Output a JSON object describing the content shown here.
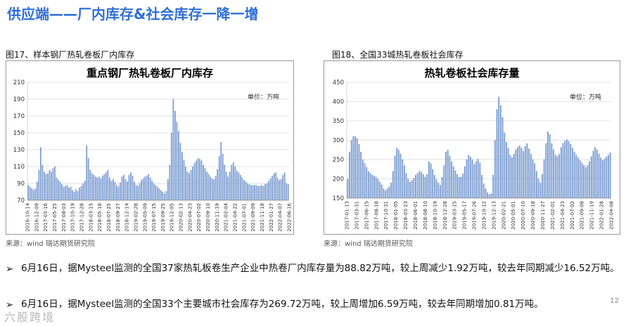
{
  "page": {
    "title": "供应端——厂内库存&社会库存一降一增",
    "page_number": "12",
    "watermark": "六股跨境",
    "accent_color": "#2f6fd6"
  },
  "figures": [
    {
      "caption": "图17、样本钢厂热轧卷板厂内库存",
      "source": "来源：wind   瑞达期货研究院"
    },
    {
      "caption": "图18、全国33城热轧卷板社会库存",
      "source": "来源：wind   瑞达期货研究院"
    }
  ],
  "bullets": [
    "6月16日，据Mysteel监测的全国37家热轧板卷生产企业中热卷厂内库存量为88.82万吨，较上周减少1.92万吨，较去年同期减少16.52万吨。",
    "6月16日，据Mysteel监测的全国33个主要城市社会库存为269.72万吨，较上周增加6.59万吨，较去年同期增加0.81万吨。"
  ],
  "chart_data": [
    {
      "type": "bar",
      "title": "重点钢厂热轧卷板厂内库存",
      "unit": "单位：万吨",
      "bar_color": "#7f9fd3",
      "ylim": [
        70,
        210
      ],
      "yticks": [
        "70",
        "90",
        "110",
        "130",
        "150",
        "170",
        "190",
        "210"
      ],
      "xticks": [
        "2016-10-14",
        "2016-12-09",
        "2017-03-16",
        "2017-05-25",
        "2017-08-03",
        "2017-10-19",
        "2017-12-28",
        "2018-03-15",
        "2018-05-18",
        "2018-07-25",
        "2018-09-27",
        "2018-12-14",
        "2019-02-28",
        "2019-05-09",
        "2019-07-15",
        "2019-09-25",
        "2019-12-05",
        "2020-02-13",
        "2020-04-23",
        "2020-07-02",
        "2020-09-10",
        "2020-11-19",
        "2021-02-04",
        "2021-04-22",
        "2021-07-01",
        "2021-09-09",
        "2021-11-18",
        "2022-01-27",
        "2022-04-07",
        "2022-06-16"
      ],
      "values": [
        88,
        86,
        84,
        82,
        84,
        92,
        106,
        133,
        112,
        104,
        101,
        102,
        106,
        104,
        108,
        110,
        97,
        94,
        92,
        89,
        86,
        87,
        88,
        85,
        86,
        82,
        80,
        83,
        81,
        85,
        87,
        90,
        93,
        135,
        120,
        106,
        102,
        100,
        98,
        97,
        98,
        96,
        99,
        101,
        103,
        106,
        97,
        93,
        95,
        92,
        88,
        86,
        91,
        98,
        100,
        95,
        92,
        100,
        103,
        99,
        92,
        88,
        87,
        90,
        94,
        96,
        98,
        99,
        101,
        97,
        93,
        90,
        88,
        86,
        84,
        82,
        80,
        78,
        81,
        95,
        112,
        150,
        190,
        176,
        163,
        152,
        138,
        127,
        118,
        110,
        104,
        102,
        106,
        110,
        114,
        117,
        120,
        119,
        117,
        112,
        108,
        104,
        101,
        98,
        96,
        95,
        99,
        107,
        122,
        139,
        125,
        112,
        104,
        98,
        104,
        112,
        115,
        110,
        105,
        103,
        100,
        97,
        94,
        92,
        90,
        89,
        88,
        88,
        88,
        88,
        87,
        87,
        88,
        87,
        89,
        90,
        93,
        96,
        99,
        102,
        103,
        97,
        94,
        95,
        100,
        103,
        90,
        89
      ]
    },
    {
      "type": "bar",
      "title": "热轧卷板社会库存量",
      "unit": "单位：万吨",
      "bar_color": "#7f9fd3",
      "ylim": [
        150,
        450
      ],
      "yticks": [
        "150",
        "200",
        "250",
        "300",
        "350",
        "400",
        "450"
      ],
      "xticks": [
        "2017-01-13",
        "2017-03-31",
        "2017-06-15",
        "2017-08-18",
        "2017-10-31",
        "2018-01-05",
        "2018-03-23",
        "2018-06-01",
        "2018-08-10",
        "2018-10-19",
        "2018-12-28",
        "2019-03-15",
        "2019-05-17",
        "2019-07-26",
        "2019-10-12",
        "2019-12-13",
        "2020-02-21",
        "2020-05-01",
        "2020-07-10",
        "2020-09-18",
        "2020-11-27",
        "2021-02-01",
        "2021-04-23",
        "2021-07-02",
        "2021-09-08",
        "2021-11-19",
        "2022-01-28",
        "2022-04-08"
      ],
      "values": [
        200,
        270,
        300,
        310,
        310,
        305,
        290,
        270,
        250,
        240,
        230,
        220,
        215,
        210,
        208,
        205,
        200,
        192,
        185,
        175,
        170,
        175,
        180,
        190,
        220,
        260,
        280,
        275,
        265,
        250,
        235,
        215,
        200,
        192,
        196,
        202,
        210,
        215,
        220,
        218,
        212,
        205,
        212,
        245,
        240,
        225,
        210,
        198,
        190,
        184,
        205,
        235,
        270,
        275,
        260,
        245,
        232,
        222,
        212,
        205,
        205,
        214,
        232,
        250,
        262,
        257,
        250,
        238,
        245,
        252,
        242,
        210,
        188,
        175,
        165,
        160,
        162,
        210,
        300,
        380,
        412,
        390,
        360,
        320,
        295,
        280,
        262,
        256,
        265,
        276,
        282,
        286,
        280,
        272,
        285,
        292,
        278,
        265,
        250,
        240,
        220,
        200,
        190,
        212,
        250,
        292,
        322,
        315,
        292,
        276,
        262,
        258,
        264,
        282,
        292,
        298,
        302,
        298,
        290,
        280,
        270,
        262,
        255,
        248,
        242,
        236,
        230,
        235,
        245,
        258,
        272,
        282,
        276,
        265,
        255,
        248,
        252,
        258,
        262,
        268
      ]
    }
  ]
}
